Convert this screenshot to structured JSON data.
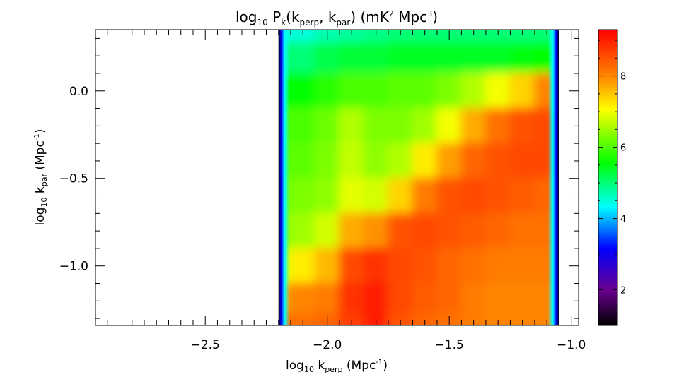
{
  "chart_data": {
    "type": "heatmap",
    "title_parts": [
      "log",
      "10",
      " P",
      "k",
      "(k",
      "perp",
      ", k",
      "par",
      ")  (mK",
      "2",
      " Mpc",
      "3",
      ")"
    ],
    "xlabel_parts": [
      "log",
      "10",
      " k",
      "perp",
      " (Mpc",
      "-1",
      ")"
    ],
    "ylabel_parts": [
      "log",
      "10",
      " k",
      "par",
      " (Mpc",
      "-1",
      ")"
    ],
    "xlim": [
      -2.95,
      -0.97
    ],
    "ylim": [
      -1.34,
      0.35
    ],
    "xticks": [
      {
        "value": -2.5,
        "label": "−2.5"
      },
      {
        "value": -2.0,
        "label": "−2.0"
      },
      {
        "value": -1.5,
        "label": "−1.5"
      },
      {
        "value": -1.0,
        "label": "−1.0"
      }
    ],
    "yticks": [
      {
        "value": 0.0,
        "label": "0.0"
      },
      {
        "value": -0.5,
        "label": "−0.5"
      },
      {
        "value": -1.0,
        "label": "−1.0"
      }
    ],
    "data_xrange": [
      -2.2,
      -1.05
    ],
    "data_yrange": [
      -1.34,
      0.35
    ],
    "data_x": [
      -2.2,
      -2.1,
      -2.0,
      -1.9,
      -1.8,
      -1.7,
      -1.6,
      -1.5,
      -1.4,
      -1.3,
      -1.2,
      -1.1,
      -1.05
    ],
    "data_y": [
      0.35,
      0.2,
      0.0,
      -0.2,
      -0.4,
      -0.6,
      -0.8,
      -1.0,
      -1.2,
      -1.34
    ],
    "values": [
      [
        4.5,
        4.5,
        4.7,
        4.8,
        4.9,
        5.0,
        5.0,
        5.0,
        5.0,
        5.0,
        5.0,
        5.0,
        5.0
      ],
      [
        5.0,
        5.0,
        5.2,
        5.3,
        5.3,
        5.4,
        5.4,
        5.4,
        5.4,
        5.4,
        5.5,
        5.6,
        5.6
      ],
      [
        5.6,
        5.6,
        5.8,
        6.0,
        6.0,
        6.1,
        6.1,
        6.3,
        6.6,
        7.0,
        7.4,
        8.0,
        8.0
      ],
      [
        6.0,
        6.0,
        6.2,
        6.6,
        6.3,
        6.3,
        6.5,
        7.0,
        7.7,
        8.2,
        8.5,
        8.6,
        8.6
      ],
      [
        6.1,
        6.1,
        6.3,
        6.7,
        6.4,
        6.6,
        7.2,
        7.8,
        8.3,
        8.5,
        8.6,
        8.6,
        8.6
      ],
      [
        6.2,
        6.3,
        6.4,
        6.9,
        6.8,
        7.4,
        8.1,
        8.5,
        8.6,
        8.5,
        8.4,
        8.3,
        8.3
      ],
      [
        6.3,
        6.5,
        6.8,
        7.7,
        7.9,
        8.5,
        8.6,
        8.5,
        8.4,
        8.3,
        8.2,
        8.2,
        8.2
      ],
      [
        6.8,
        7.2,
        7.6,
        8.6,
        8.8,
        8.6,
        8.5,
        8.3,
        8.2,
        8.1,
        8.1,
        8.1,
        8.1
      ],
      [
        7.8,
        8.0,
        8.1,
        8.8,
        9.0,
        8.6,
        8.4,
        8.3,
        8.1,
        8.0,
        8.0,
        8.0,
        8.0
      ],
      [
        8.2,
        8.2,
        8.3,
        8.7,
        9.0,
        8.5,
        8.3,
        8.2,
        8.1,
        8.0,
        8.0,
        8.0,
        8.0
      ]
    ],
    "colorbar": {
      "range": [
        1.0,
        9.3
      ],
      "ticks": [
        {
          "value": 2,
          "label": "2"
        },
        {
          "value": 4,
          "label": "4"
        },
        {
          "value": 6,
          "label": "6"
        },
        {
          "value": 8,
          "label": "8"
        }
      ]
    },
    "grid": false,
    "legend": "colorbar-right",
    "colormap": [
      "#000000",
      "#6a0090",
      "#0000ff",
      "#00ffff",
      "#00ff00",
      "#ffff00",
      "#ff8800",
      "#ff0000"
    ]
  }
}
